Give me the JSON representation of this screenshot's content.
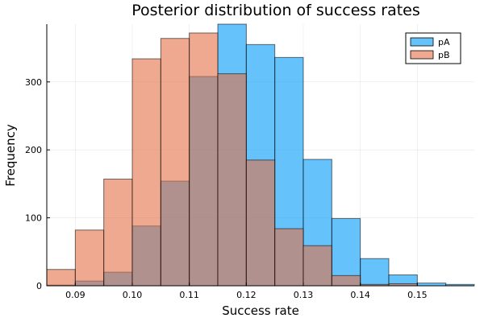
{
  "chart_data": {
    "type": "bar",
    "title": "Posterior distribution of success rates",
    "xlabel": "Success rate",
    "ylabel": "Frequency",
    "xlim": [
      0.085,
      0.16
    ],
    "ylim": [
      0,
      385
    ],
    "xticks": [
      0.09,
      0.1,
      0.11,
      0.12,
      0.13,
      0.14,
      0.15
    ],
    "xtick_labels": [
      "0.09",
      "0.10",
      "0.11",
      "0.12",
      "0.13",
      "0.14",
      "0.15"
    ],
    "yticks": [
      0,
      100,
      200,
      300
    ],
    "ytick_labels": [
      "0",
      "100",
      "200",
      "300"
    ],
    "grid": true,
    "legend_position": "top-right",
    "colors": {
      "pA": "#009af9",
      "pB": "#e26f46",
      "overlap": "#aa8a88"
    },
    "series": [
      {
        "name": "pA",
        "bin_start": 0.085,
        "bin_width": 0.005,
        "values": [
          1,
          7,
          20,
          88,
          154,
          308,
          385,
          355,
          336,
          186,
          99,
          40,
          16,
          4,
          2
        ]
      },
      {
        "name": "pB",
        "bin_start": 0.085,
        "bin_width": 0.005,
        "values": [
          24,
          82,
          157,
          334,
          364,
          372,
          312,
          185,
          84,
          59,
          15,
          2,
          3,
          0,
          0
        ]
      }
    ]
  }
}
